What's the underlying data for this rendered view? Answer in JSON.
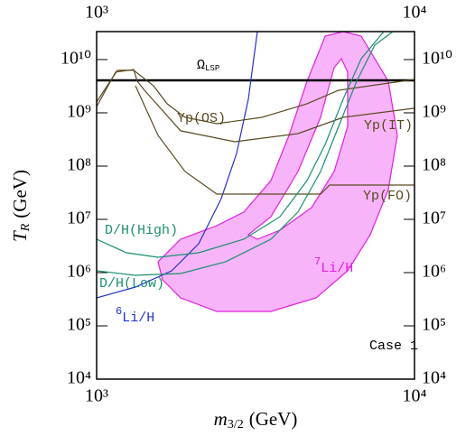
{
  "chart_data": {
    "type": "line",
    "x_label": {
      "symbol": "m",
      "subscript": "3/2",
      "unit": "(GeV)"
    },
    "y_label": {
      "symbol": "T",
      "subscript": "R",
      "unit": "(GeV)"
    },
    "xscale": "log",
    "yscale": "log",
    "xlim": [
      1000,
      10000
    ],
    "ylim": [
      10000,
      33500000000
    ],
    "xticks": [
      {
        "value": 1000,
        "label": "10³"
      },
      {
        "value": 10000,
        "label": "10⁴"
      }
    ],
    "yticks": [
      {
        "value": 10000,
        "label": "10⁴"
      },
      {
        "value": 100000,
        "label": "10⁵"
      },
      {
        "value": 1000000,
        "label": "10⁶"
      },
      {
        "value": 10000000,
        "label": "10⁷"
      },
      {
        "value": 100000000,
        "label": "10⁸"
      },
      {
        "value": 1000000000,
        "label": "10⁹"
      },
      {
        "value": 10000000000,
        "label": "10¹⁰"
      }
    ],
    "region": {
      "name": "Li/H",
      "sup": "7",
      "color": "#e020e0",
      "fill": "#f8b4f8",
      "outer_x": [
        1560,
        1837,
        2388,
        2905,
        3534,
        4028,
        4590,
        5235,
        5965,
        6798,
        8273,
        8831,
        8273,
        7256,
        6164,
        4901,
        3534,
        2388,
        1837,
        1612
      ],
      "outer_y": [
        1600000,
        4240000,
        7610000,
        13700000,
        53500000,
        377000000,
        3920000000,
        27600000000,
        33500000000,
        27600000000,
        3920000000,
        377000000,
        36200000,
        5150000,
        1080000,
        335000,
        187000,
        187000,
        335000,
        731000
      ],
      "inner_x": [
        3002,
        3534,
        4300,
        5065,
        5588,
        5889,
        6164,
        6164,
        5588,
        4745,
        3773,
        3204
      ],
      "inner_y": [
        5150000,
        11200000,
        79100000,
        822000000,
        7030000000,
        10400000000,
        5800000000,
        557000000,
        79100000,
        16600000,
        6260000,
        4240000
      ]
    },
    "series": [
      {
        "name": "Ω",
        "sub": "LSP",
        "color": "#000000",
        "width": 2.5,
        "x": [
          1000,
          10000
        ],
        "values": [
          4070000000,
          4070000000
        ]
      },
      {
        "name": "Li/H",
        "sup": "6",
        "color": "#2233cc",
        "width": 1.2,
        "x": [
          1000,
          1325,
          1722,
          2094,
          2466,
          2757,
          3002,
          3204
        ],
        "values": [
          335000,
          536000,
          1080000,
          3490000,
          24500000,
          173000000,
          1800000000,
          33500000000
        ]
      },
      {
        "name": "Yp(FO)",
        "color": "#5a4a20",
        "width": 1.2,
        "x": [
          1325,
          1560,
          1897,
          2388,
          5065,
          5408,
          10000
        ],
        "values": [
          3220000000,
          377000000,
          79100000,
          29800000,
          29800000,
          44100000,
          44100000
        ]
      },
      {
        "name": "Yp(OS)",
        "color": "#5a4a20",
        "width": 1.2,
        "x": [
          1000,
          1162,
          1308,
          1510,
          1666,
          1897,
          2388,
          3311,
          4590,
          5774,
          10000
        ],
        "values": [
          1600000000,
          6270000000,
          6270000000,
          3220000000,
          1480000000,
          822000000,
          626000000,
          822000000,
          1480000000,
          2650000000,
          4240000000
        ]
      },
      {
        "name": "Yp(IT)",
        "color": "#5a4a20",
        "width": 1.2,
        "x": [
          1000,
          1147,
          1308,
          1342,
          1414,
          1837,
          2722,
          4300,
          5965,
          10000
        ],
        "values": [
          1310000000,
          5800000000,
          6510000000,
          3920000000,
          2650000000,
          459000000,
          287000000,
          408000000,
          822000000,
          1220000000
        ]
      },
      {
        "name": "D/H(High)",
        "color": "#1a9070",
        "width": 1.2,
        "x": [
          1000,
          1241,
          1560,
          2094,
          2905,
          3773,
          4590,
          5235,
          5965,
          6798,
          8007
        ],
        "values": [
          4240000,
          2360000,
          1940000,
          2360000,
          4240000,
          11200000,
          53500000,
          255000000,
          1800000000,
          10400000000,
          33500000000
        ]
      },
      {
        "name": "D/H(Low)",
        "color": "#1a9070",
        "width": 1.2,
        "x": [
          1000,
          1325,
          1837,
          2549,
          3534,
          4300,
          5065,
          5774,
          6580,
          7499,
          8548
        ],
        "values": [
          1080000,
          889000,
          962000,
          1600000,
          4240000,
          13700000,
          79100000,
          557000000,
          3920000000,
          18700000000,
          33500000000
        ]
      }
    ],
    "annotation": "Case 1"
  }
}
